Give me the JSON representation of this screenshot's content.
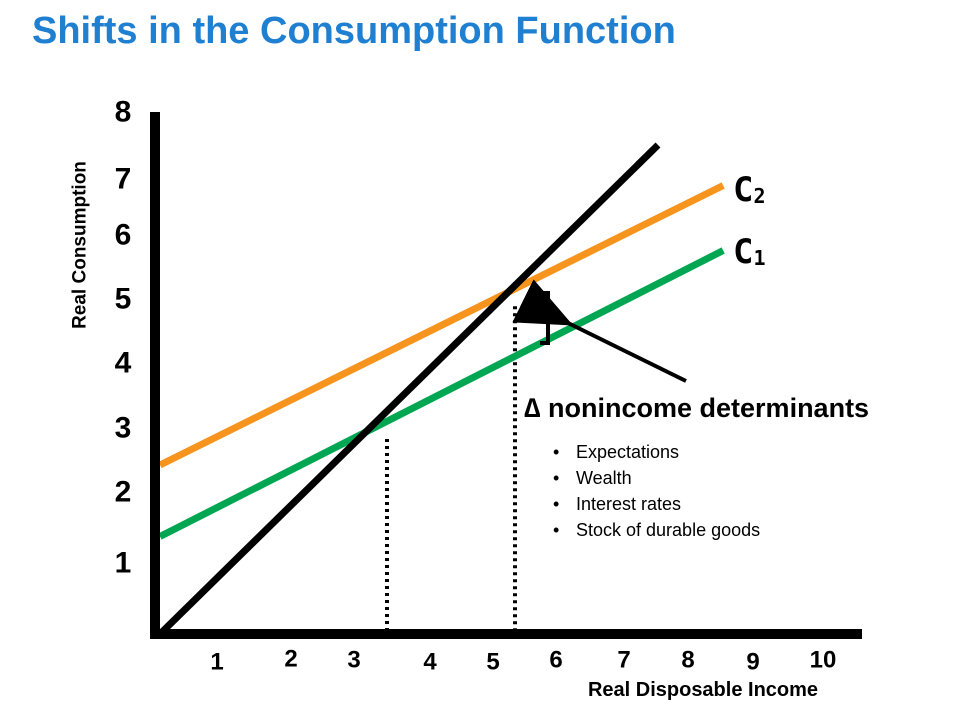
{
  "chart_data": {
    "type": "line",
    "title": "Shifts in the Consumption Function",
    "xlabel": "Real Disposable Income",
    "ylabel": "Real Consumption",
    "x_ticks": [
      1,
      2,
      3,
      4,
      5,
      6,
      7,
      8,
      9,
      10
    ],
    "y_ticks": [
      1,
      2,
      3,
      4,
      5,
      6,
      7,
      8
    ],
    "series": [
      {
        "name": "45-degree line",
        "color": "#000000",
        "points": [
          [
            0,
            0
          ],
          [
            7.3,
            7.3
          ]
        ]
      },
      {
        "name": "C2",
        "color": "#f7941d",
        "points": [
          [
            0,
            2.6
          ],
          [
            8.8,
            6.9
          ]
        ]
      },
      {
        "name": "C1",
        "color": "#00a651",
        "points": [
          [
            0,
            1.5
          ],
          [
            8.8,
            5.9
          ]
        ]
      }
    ],
    "curve_labels": [
      {
        "letter": "C",
        "subscript": "2",
        "series": "C2"
      },
      {
        "letter": "C",
        "subscript": "1",
        "series": "C1"
      }
    ],
    "dotted_lines": [
      3,
      5
    ],
    "shift_bracket": {
      "x": 5.0,
      "y_from": 3.95,
      "y_to": 5.0
    },
    "annotation": {
      "symbol": "∆",
      "text": "nonincome determinants",
      "bullets": [
        "Expectations",
        "Wealth",
        "Interest rates",
        "Stock of durable goods"
      ]
    }
  }
}
